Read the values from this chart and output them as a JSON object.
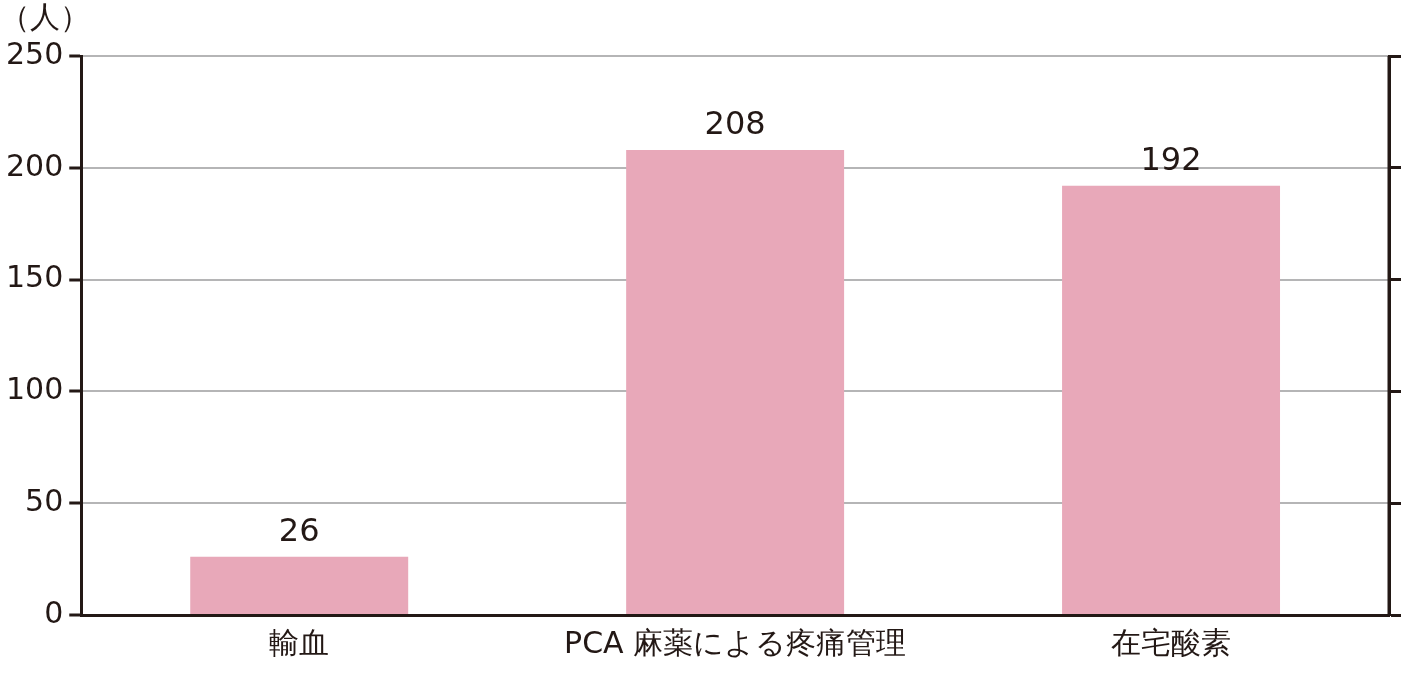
{
  "chart_data": {
    "type": "bar",
    "ylabel": "（人）",
    "categories": [
      "輸血",
      "PCA 麻薬による疼痛管理",
      "在宅酸素"
    ],
    "values": [
      26,
      208,
      192
    ],
    "color": "#e8a8b9",
    "ylim": [
      0,
      250
    ],
    "yticks": [
      0,
      50,
      100,
      150,
      200,
      250
    ],
    "grid": "y",
    "data_labels": true,
    "legend": false
  }
}
